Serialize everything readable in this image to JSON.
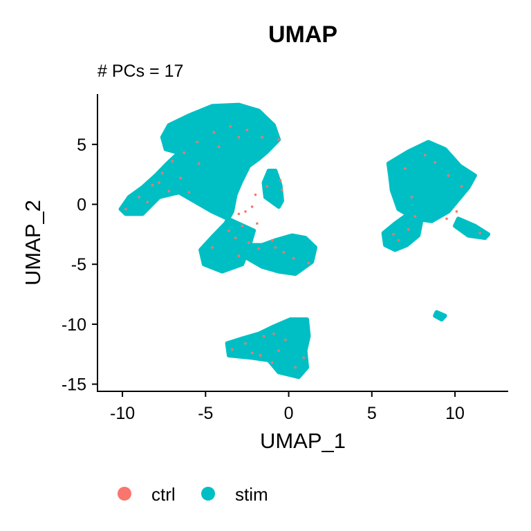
{
  "chart_data": {
    "type": "scatter",
    "title": "UMAP",
    "subtitle": "# PCs = 17",
    "xlabel": "UMAP_1",
    "ylabel": "UMAP_2",
    "xlim": [
      -11.5,
      13.2
    ],
    "ylim": [
      -15.6,
      9.2
    ],
    "xticks": [
      -10,
      -5,
      0,
      5,
      10
    ],
    "yticks": [
      5,
      0,
      -5,
      -10,
      -15
    ],
    "xtick_labels": [
      "-10",
      "-5",
      "0",
      "5",
      "10"
    ],
    "ytick_labels": [
      "5",
      "0",
      "-5",
      "-10",
      "-15"
    ],
    "grid": false,
    "legend_position": "bottom",
    "series": [
      {
        "name": "ctrl",
        "color": "#F8766D",
        "clusters": [
          {
            "points": [
              [
                -9.8,
                -0.4
              ],
              [
                -9.0,
                0.6
              ],
              [
                -8.2,
                1.6
              ],
              [
                -7.6,
                2.6
              ],
              [
                -7.0,
                3.6
              ],
              [
                -6.3,
                4.3
              ],
              [
                -5.5,
                5.2
              ],
              [
                -4.5,
                6.0
              ],
              [
                -3.5,
                6.5
              ],
              [
                -2.5,
                6.2
              ],
              [
                -1.6,
                5.6
              ],
              [
                -0.6,
                5.4
              ],
              [
                -0.5,
                2.0
              ],
              [
                -1.3,
                1.5
              ],
              [
                -2.0,
                0.8
              ],
              [
                -3.0,
                -0.8
              ],
              [
                -3.6,
                -2.2
              ],
              [
                -4.6,
                -3.6
              ],
              [
                -3.0,
                -4.3
              ],
              [
                -1.8,
                -3.7
              ],
              [
                -1.0,
                -3.0
              ],
              [
                0.3,
                -4.5
              ],
              [
                1.2,
                -4.9
              ],
              [
                -8.5,
                0.2
              ],
              [
                -7.2,
                1.1
              ],
              [
                -6.5,
                2.2
              ],
              [
                -5.4,
                3.4
              ],
              [
                -2.8,
                -1.8
              ],
              [
                -2.4,
                -3.2
              ],
              [
                -3.4,
                -12.1
              ],
              [
                -2.6,
                -11.6
              ],
              [
                -1.5,
                -11.0
              ],
              [
                -0.9,
                -10.8
              ],
              [
                -0.2,
                -11.3
              ],
              [
                -1.0,
                -13.2
              ],
              [
                0.4,
                -13.6
              ],
              [
                0.9,
                -12.8
              ],
              [
                7.0,
                3.0
              ],
              [
                8.2,
                4.1
              ],
              [
                9.6,
                2.4
              ],
              [
                10.4,
                1.5
              ],
              [
                7.6,
                -1.0
              ],
              [
                7.2,
                -2.1
              ],
              [
                6.6,
                -3.0
              ],
              [
                9.5,
                -1.2
              ],
              [
                11.5,
                -2.4
              ]
            ]
          },
          {
            "points": [
              [
                -2.2,
                -0.2
              ],
              [
                -2.6,
                -0.6
              ],
              [
                -1.9,
                -1.6
              ],
              [
                -3.2,
                -2.8
              ],
              [
                -0.8,
                -3.6
              ],
              [
                -0.3,
                -4.0
              ],
              [
                -6.0,
                1.0
              ],
              [
                -7.8,
                1.8
              ],
              [
                -4.2,
                4.8
              ],
              [
                -3.0,
                5.6
              ],
              [
                -0.4,
                1.2
              ],
              [
                -1.7,
                -12.6
              ],
              [
                -0.6,
                -12.2
              ],
              [
                -2.2,
                -12.4
              ],
              [
                8.8,
                3.5
              ],
              [
                7.4,
                0.6
              ],
              [
                10.1,
                -0.6
              ],
              [
                6.3,
                -2.5
              ]
            ]
          }
        ]
      },
      {
        "name": "stim",
        "color": "#00BFC4",
        "clusters": []
      }
    ]
  },
  "legend": {
    "items": [
      {
        "label": "ctrl",
        "color": "#F8766D"
      },
      {
        "label": "stim",
        "color": "#00BFC4"
      }
    ]
  }
}
